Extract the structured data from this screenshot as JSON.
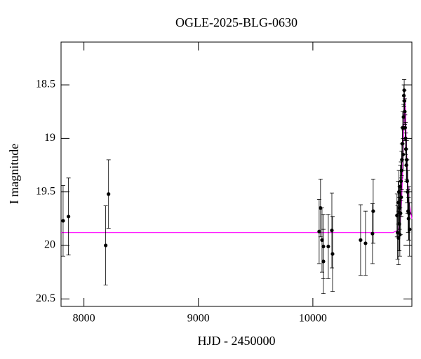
{
  "chart_data": {
    "type": "errorbar_scatter",
    "title": "OGLE-2025-BLG-0630",
    "xlabel": "HJD - 2450000",
    "ylabel": "I magnitude",
    "xlim": [
      7800,
      10865
    ],
    "ylim": [
      20.57,
      18.1
    ],
    "y_inverted": true,
    "xticks": [
      8000,
      9000,
      10000
    ],
    "yticks": [
      18.5,
      19,
      19.5,
      20,
      20.5
    ],
    "observations": {
      "color": "#000000",
      "x": [
        7818,
        7865,
        8190,
        8215,
        10055,
        10067,
        10080,
        10092,
        10092,
        10135,
        10166,
        10172,
        10417,
        10460,
        10521,
        10527,
        10735,
        10740,
        10745,
        10748,
        10752,
        10755,
        10758,
        10760,
        10763,
        10766,
        10770,
        10772,
        10775,
        10778,
        10782,
        10785,
        10788,
        10792,
        10795,
        10798,
        10800,
        10803,
        10806,
        10810,
        10813,
        10817,
        10820,
        10824,
        10828,
        10832,
        10836,
        10840,
        10845
      ],
      "values": [
        19.77,
        19.73,
        20.0,
        19.52,
        19.87,
        19.65,
        19.95,
        20.01,
        20.15,
        20.01,
        19.86,
        20.08,
        19.95,
        19.98,
        19.89,
        19.68,
        19.72,
        19.88,
        19.6,
        19.93,
        19.5,
        19.8,
        19.65,
        19.9,
        19.45,
        19.7,
        19.4,
        19.55,
        19.3,
        19.2,
        19.05,
        18.9,
        19.15,
        18.8,
        18.6,
        18.55,
        18.65,
        18.75,
        18.9,
        19.0,
        19.1,
        19.25,
        19.2,
        19.4,
        19.5,
        19.68,
        19.75,
        19.7,
        19.85
      ],
      "errors": [
        0.33,
        0.36,
        0.37,
        0.32,
        0.3,
        0.27,
        0.3,
        0.3,
        0.3,
        0.3,
        0.35,
        0.35,
        0.33,
        0.3,
        0.28,
        0.3,
        0.2,
        0.25,
        0.2,
        0.25,
        0.2,
        0.25,
        0.2,
        0.2,
        0.2,
        0.2,
        0.18,
        0.18,
        0.18,
        0.15,
        0.15,
        0.15,
        0.15,
        0.12,
        0.1,
        0.1,
        0.1,
        0.12,
        0.12,
        0.15,
        0.15,
        0.15,
        0.18,
        0.2,
        0.2,
        0.2,
        0.2,
        0.25,
        0.25
      ]
    },
    "model": {
      "color": "#ff00ff",
      "x": [
        7800,
        10700,
        10740,
        10760,
        10775,
        10785,
        10795,
        10803,
        10810,
        10818,
        10828,
        10840,
        10865
      ],
      "values": [
        19.88,
        19.88,
        19.86,
        19.8,
        19.6,
        19.3,
        18.85,
        18.62,
        18.75,
        19.1,
        19.4,
        19.6,
        19.75
      ]
    }
  }
}
